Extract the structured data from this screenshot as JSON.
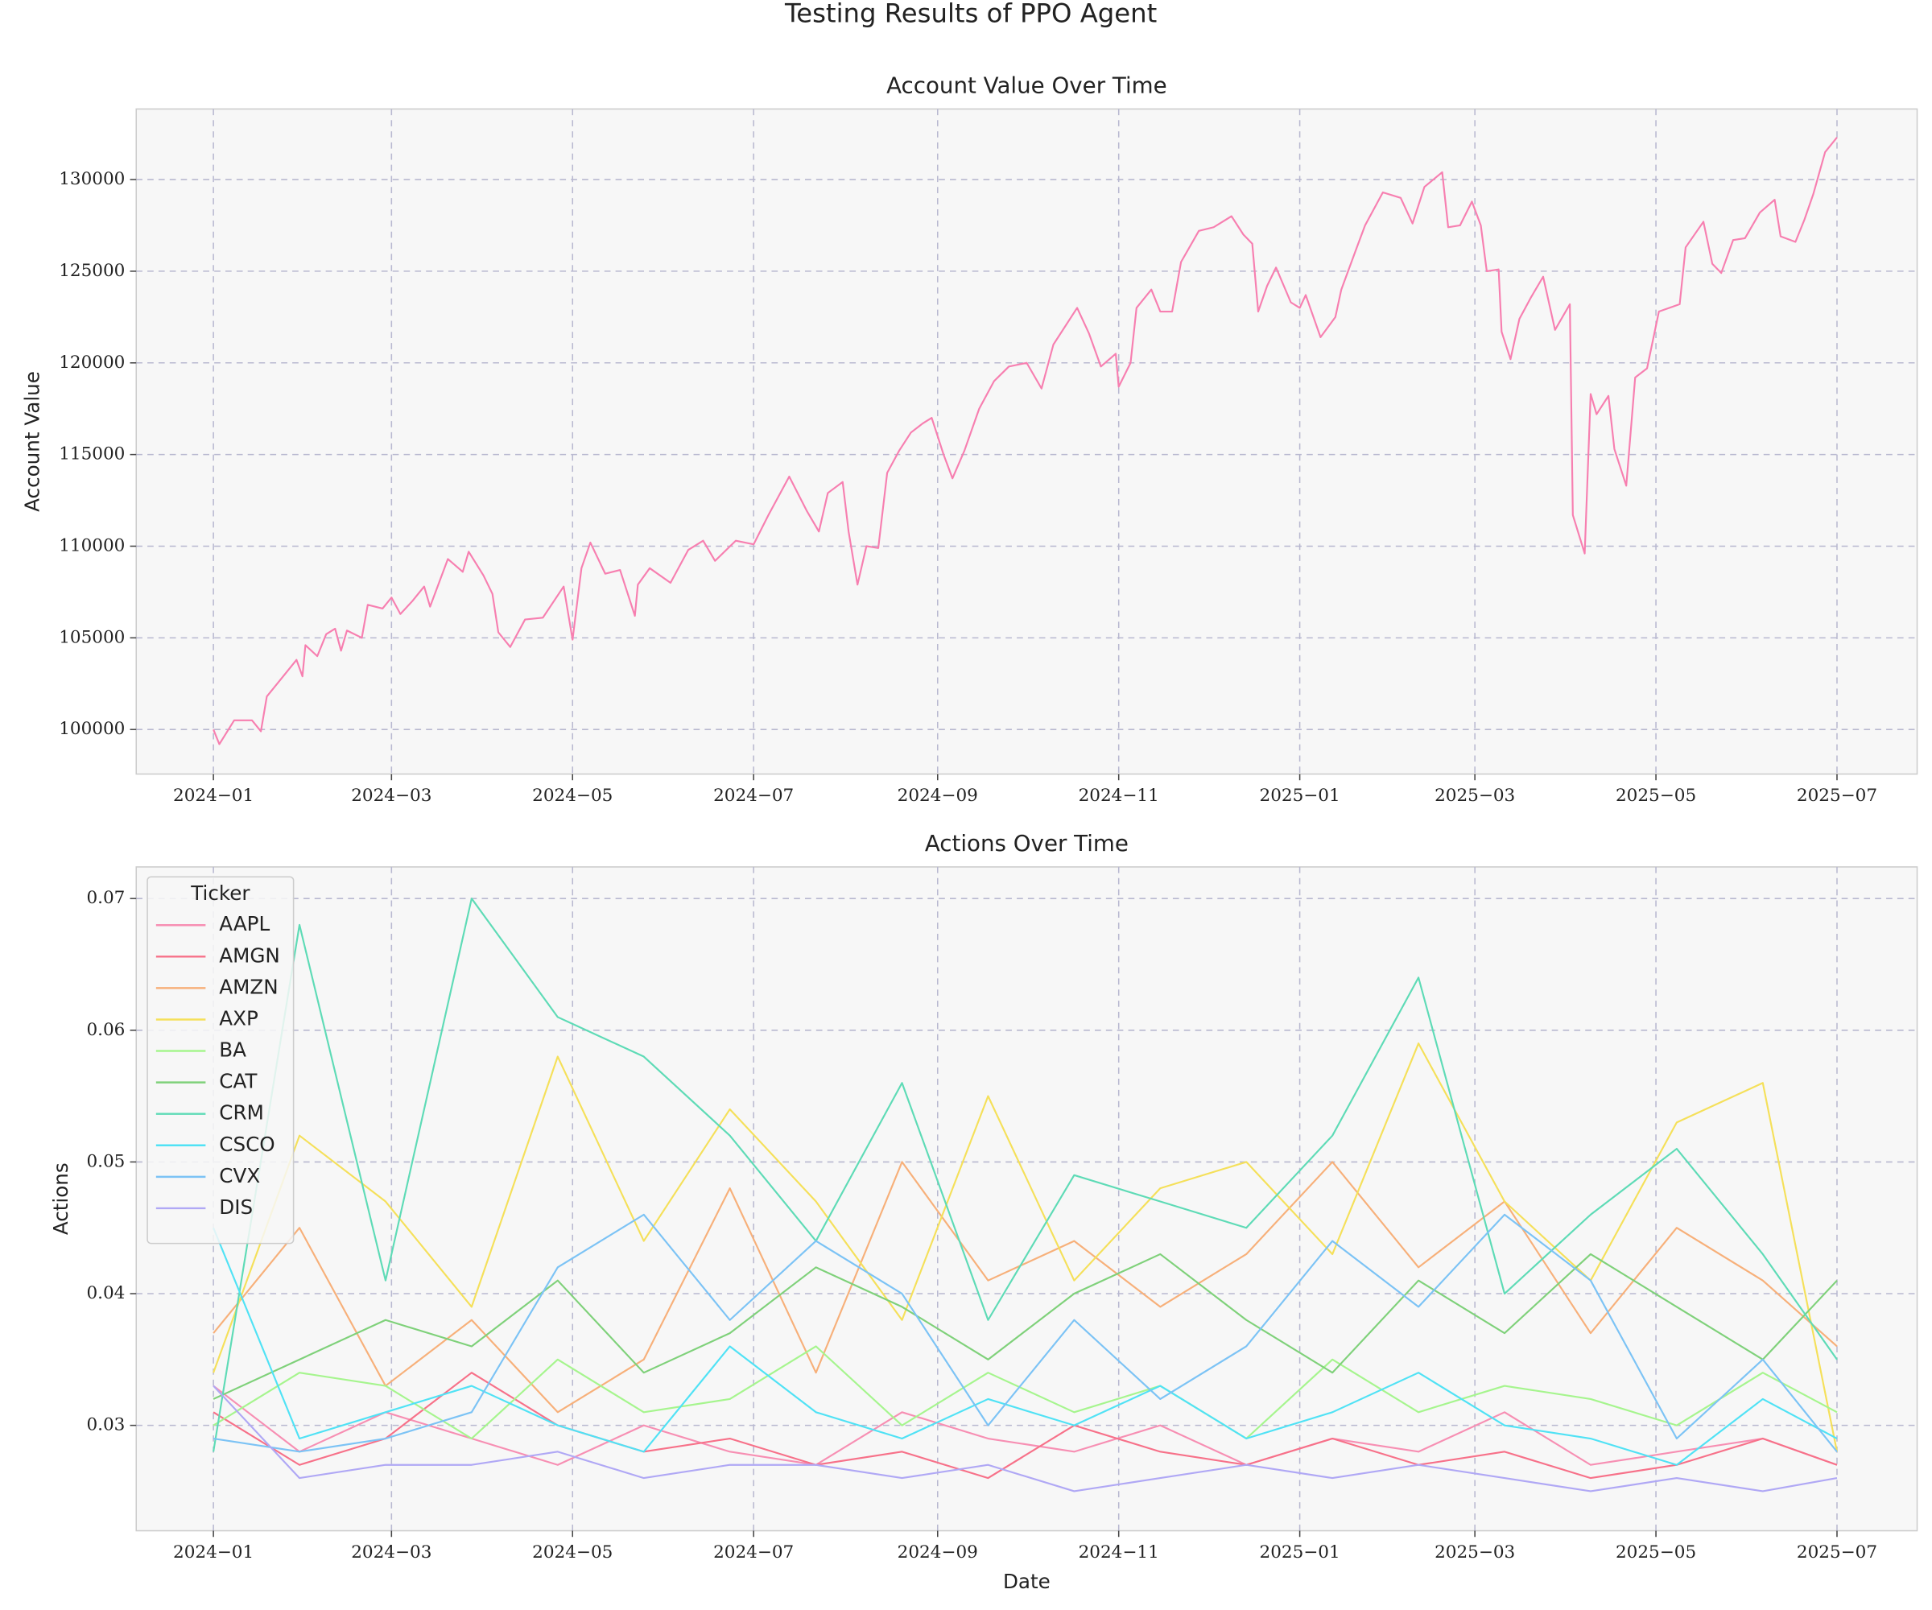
{
  "title": "Testing Results of PPO Agent",
  "chart_data": [
    {
      "type": "line",
      "title": "Account Value Over Time",
      "ylabel": "Account Value",
      "x": [
        "2024-01-01",
        "2024-01-03",
        "2024-01-08",
        "2024-01-14",
        "2024-01-17",
        "2024-01-19",
        "2024-01-25",
        "2024-01-29",
        "2024-01-31",
        "2024-02-01",
        "2024-02-05",
        "2024-02-08",
        "2024-02-11",
        "2024-02-13",
        "2024-02-15",
        "2024-02-20",
        "2024-02-22",
        "2024-02-27",
        "2024-03-01",
        "2024-03-04",
        "2024-03-08",
        "2024-03-12",
        "2024-03-14",
        "2024-03-20",
        "2024-03-25",
        "2024-03-27",
        "2024-04-01",
        "2024-04-04",
        "2024-04-06",
        "2024-04-10",
        "2024-04-15",
        "2024-04-21",
        "2024-04-28",
        "2024-05-01",
        "2024-05-04",
        "2024-05-07",
        "2024-05-12",
        "2024-05-17",
        "2024-05-22",
        "2024-05-23",
        "2024-05-27",
        "2024-06-03",
        "2024-06-09",
        "2024-06-14",
        "2024-06-18",
        "2024-06-25",
        "2024-07-01",
        "2024-07-06",
        "2024-07-13",
        "2024-07-19",
        "2024-07-23",
        "2024-07-26",
        "2024-07-31",
        "2024-08-02",
        "2024-08-05",
        "2024-08-08",
        "2024-08-12",
        "2024-08-15",
        "2024-08-19",
        "2024-08-23",
        "2024-08-27",
        "2024-08-30",
        "2024-09-03",
        "2024-09-06",
        "2024-09-10",
        "2024-09-15",
        "2024-09-20",
        "2024-09-25",
        "2024-10-01",
        "2024-10-06",
        "2024-10-10",
        "2024-10-18",
        "2024-10-22",
        "2024-10-26",
        "2024-10-31",
        "2024-11-01",
        "2024-11-05",
        "2024-11-07",
        "2024-11-12",
        "2024-11-15",
        "2024-11-19",
        "2024-11-22",
        "2024-11-28",
        "2024-12-03",
        "2024-12-09",
        "2024-12-13",
        "2024-12-16",
        "2024-12-18",
        "2024-12-21",
        "2024-12-24",
        "2024-12-29",
        "2025-01-01",
        "2025-01-03",
        "2025-01-08",
        "2025-01-13",
        "2025-01-15",
        "2025-01-20",
        "2025-01-23",
        "2025-01-29",
        "2025-02-04",
        "2025-02-08",
        "2025-02-12",
        "2025-02-18",
        "2025-02-20",
        "2025-02-24",
        "2025-02-28",
        "2025-03-03",
        "2025-03-05",
        "2025-03-09",
        "2025-03-10",
        "2025-03-13",
        "2025-03-16",
        "2025-03-20",
        "2025-03-24",
        "2025-03-28",
        "2025-04-02",
        "2025-04-03",
        "2025-04-07",
        "2025-04-09",
        "2025-04-11",
        "2025-04-15",
        "2025-04-17",
        "2025-04-21",
        "2025-04-24",
        "2025-04-28",
        "2025-05-02",
        "2025-05-09",
        "2025-05-11",
        "2025-05-17",
        "2025-05-20",
        "2025-05-23",
        "2025-05-27",
        "2025-05-31",
        "2025-06-05",
        "2025-06-10",
        "2025-06-12",
        "2025-06-17",
        "2025-06-20",
        "2025-06-23",
        "2025-06-27",
        "2025-07-01"
      ],
      "series": [
        {
          "color": "#f77fb0",
          "values": [
            100000,
            99200,
            100500,
            100500,
            99900,
            101800,
            103000,
            103800,
            102900,
            104600,
            104000,
            105200,
            105500,
            104300,
            105400,
            105000,
            106800,
            106600,
            107200,
            106300,
            107000,
            107800,
            106700,
            109300,
            108600,
            109700,
            108400,
            107400,
            105300,
            104500,
            106000,
            106100,
            107800,
            104900,
            108800,
            110200,
            108500,
            108700,
            106200,
            107900,
            108800,
            108000,
            109800,
            110300,
            109200,
            110300,
            110100,
            111700,
            113800,
            111900,
            110800,
            112900,
            113500,
            110800,
            107900,
            110000,
            109900,
            114000,
            115200,
            116200,
            116700,
            117000,
            115000,
            113700,
            115200,
            117500,
            119000,
            119800,
            120000,
            118600,
            121000,
            123000,
            121600,
            119800,
            120500,
            118700,
            120000,
            123000,
            124000,
            122800,
            122800,
            125500,
            127200,
            127400,
            128000,
            127000,
            126500,
            122800,
            124200,
            125200,
            123300,
            123000,
            123700,
            121400,
            122500,
            124000,
            126200,
            127500,
            129300,
            129000,
            127600,
            129600,
            130400,
            127400,
            127500,
            128800,
            127500,
            125000,
            125100,
            121700,
            120200,
            122400,
            123600,
            124700,
            121800,
            123200,
            111700,
            109600,
            118300,
            117200,
            118200,
            115300,
            113300,
            119200,
            119700,
            122800,
            123200,
            126300,
            127700,
            125400,
            124900,
            126700,
            126800,
            128200,
            128900,
            126900,
            126600,
            127800,
            129200,
            131500,
            132300
          ]
        }
      ],
      "xlim": [
        "2023-12-06",
        "2025-07-28"
      ],
      "ylim": [
        97570,
        133850
      ],
      "xticks": [
        {
          "value": "2024-01-01",
          "label": "2024−01"
        },
        {
          "value": "2024-03-01",
          "label": "2024−03"
        },
        {
          "value": "2024-05-01",
          "label": "2024−05"
        },
        {
          "value": "2024-07-01",
          "label": "2024−07"
        },
        {
          "value": "2024-09-01",
          "label": "2024−09"
        },
        {
          "value": "2024-11-01",
          "label": "2024−11"
        },
        {
          "value": "2025-01-01",
          "label": "2025−01"
        },
        {
          "value": "2025-03-01",
          "label": "2025−03"
        },
        {
          "value": "2025-05-01",
          "label": "2025−05"
        },
        {
          "value": "2025-07-01",
          "label": "2025−07"
        }
      ],
      "yticks": [
        100000,
        105000,
        110000,
        115000,
        120000,
        125000,
        130000
      ],
      "grid": true
    },
    {
      "type": "line",
      "title": "Actions Over Time",
      "xlabel": "Date",
      "ylabel": "Actions",
      "legend_title": "Ticker",
      "legend": "upper left",
      "x": [
        "2024-01-01",
        "2024-01-30",
        "2024-02-28",
        "2024-03-28",
        "2024-04-26",
        "2024-05-25",
        "2024-06-23",
        "2024-07-22",
        "2024-08-20",
        "2024-09-18",
        "2024-10-17",
        "2024-11-15",
        "2024-12-14",
        "2025-01-12",
        "2025-02-10",
        "2025-03-11",
        "2025-04-09",
        "2025-05-08",
        "2025-06-06",
        "2025-07-01"
      ],
      "series": [
        {
          "name": "AAPL",
          "color": "#f78fb3",
          "values": [
            0.033,
            0.028,
            0.031,
            0.029,
            0.027,
            0.03,
            0.028,
            0.027,
            0.031,
            0.029,
            0.028,
            0.03,
            0.027,
            0.029,
            0.028,
            0.031,
            0.027,
            0.028,
            0.029,
            0.027
          ]
        },
        {
          "name": "AMGN",
          "color": "#f77189",
          "values": [
            0.031,
            0.027,
            0.029,
            0.034,
            0.03,
            0.028,
            0.029,
            0.027,
            0.028,
            0.026,
            0.03,
            0.028,
            0.027,
            0.029,
            0.027,
            0.028,
            0.026,
            0.027,
            0.029,
            0.027
          ]
        },
        {
          "name": "AMZN",
          "color": "#f7b07a",
          "values": [
            0.037,
            0.045,
            0.033,
            0.038,
            0.031,
            0.035,
            0.048,
            0.034,
            0.05,
            0.041,
            0.044,
            0.039,
            0.043,
            0.05,
            0.042,
            0.047,
            0.037,
            0.045,
            0.041,
            0.036
          ]
        },
        {
          "name": "AXP",
          "color": "#f5e05a",
          "values": [
            0.034,
            0.052,
            0.047,
            0.039,
            0.058,
            0.044,
            0.054,
            0.047,
            0.038,
            0.055,
            0.041,
            0.048,
            0.05,
            0.043,
            0.059,
            0.047,
            0.041,
            0.053,
            0.056,
            0.028
          ]
        },
        {
          "name": "BA",
          "color": "#a6f58e",
          "values": [
            0.03,
            0.034,
            0.033,
            0.029,
            0.035,
            0.031,
            0.032,
            0.036,
            0.03,
            0.034,
            0.031,
            0.033,
            0.029,
            0.035,
            0.031,
            0.033,
            0.032,
            0.03,
            0.034,
            0.031
          ]
        },
        {
          "name": "CAT",
          "color": "#7fd17a",
          "values": [
            0.032,
            0.035,
            0.038,
            0.036,
            0.041,
            0.034,
            0.037,
            0.042,
            0.039,
            0.035,
            0.04,
            0.043,
            0.038,
            0.034,
            0.041,
            0.037,
            0.043,
            0.039,
            0.035,
            0.041
          ]
        },
        {
          "name": "CRM",
          "color": "#5edbb6",
          "values": [
            0.028,
            0.068,
            0.041,
            0.07,
            0.061,
            0.058,
            0.052,
            0.044,
            0.056,
            0.038,
            0.049,
            0.047,
            0.045,
            0.052,
            0.064,
            0.04,
            0.046,
            0.051,
            0.043,
            0.035
          ]
        },
        {
          "name": "CSCO",
          "color": "#50e2f5",
          "values": [
            0.045,
            0.029,
            0.031,
            0.033,
            0.03,
            0.028,
            0.036,
            0.031,
            0.029,
            0.032,
            0.03,
            0.033,
            0.029,
            0.031,
            0.034,
            0.03,
            0.029,
            0.027,
            0.032,
            0.029
          ]
        },
        {
          "name": "CVX",
          "color": "#7cc3f5",
          "values": [
            0.029,
            0.028,
            0.029,
            0.031,
            0.042,
            0.046,
            0.038,
            0.044,
            0.04,
            0.03,
            0.038,
            0.032,
            0.036,
            0.044,
            0.039,
            0.046,
            0.041,
            0.029,
            0.035,
            0.028
          ]
        },
        {
          "name": "DIS",
          "color": "#b0a8f5",
          "values": [
            0.033,
            0.026,
            0.027,
            0.027,
            0.028,
            0.026,
            0.027,
            0.027,
            0.026,
            0.027,
            0.025,
            0.026,
            0.027,
            0.026,
            0.027,
            0.026,
            0.025,
            0.026,
            0.025,
            0.026
          ]
        }
      ],
      "xlim": [
        "2023-12-06",
        "2025-07-28"
      ],
      "ylim": [
        0.022,
        0.0724
      ],
      "xticks": [
        {
          "value": "2024-01-01",
          "label": "2024−01"
        },
        {
          "value": "2024-03-01",
          "label": "2024−03"
        },
        {
          "value": "2024-05-01",
          "label": "2024−05"
        },
        {
          "value": "2024-07-01",
          "label": "2024−07"
        },
        {
          "value": "2024-09-01",
          "label": "2024−09"
        },
        {
          "value": "2024-11-01",
          "label": "2024−11"
        },
        {
          "value": "2025-01-01",
          "label": "2025−01"
        },
        {
          "value": "2025-03-01",
          "label": "2025−03"
        },
        {
          "value": "2025-05-01",
          "label": "2025−05"
        },
        {
          "value": "2025-07-01",
          "label": "2025−07"
        }
      ],
      "yticks": [
        0.03,
        0.04,
        0.05,
        0.06,
        0.07
      ],
      "grid": true
    }
  ]
}
